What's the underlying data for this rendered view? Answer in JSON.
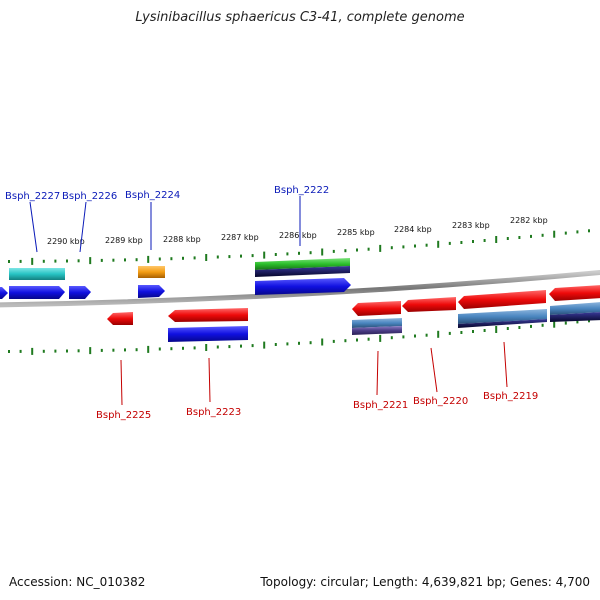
{
  "title": "Lysinibacillus sphaericus C3-41, complete genome",
  "footer": {
    "accession": "Accession: NC_010382",
    "topology": "Topology: circular; Length: 4,639,821 bp; Genes: 4,700"
  },
  "scale_labels": [
    "2290 kbp",
    "2289 kbp",
    "2288 kbp",
    "2287 kbp",
    "2286 kbp",
    "2285 kbp",
    "2284 kbp",
    "2283 kbp",
    "2282 kbp"
  ],
  "gene_labels_top": [
    "Bsph_2227",
    "Bsph_2226",
    "Bsph_2224",
    "Bsph_2222"
  ],
  "gene_labels_bottom": [
    "Bsph_2225",
    "Bsph_2223",
    "Bsph_2221",
    "Bsph_2220",
    "Bsph_2219"
  ],
  "colors": {
    "forward_gene": "#1010e0",
    "reverse_gene": "#ee0a0a",
    "cyan_track": "#27c4c4",
    "orange_track": "#f39c12",
    "green_track": "#2bbf2b",
    "navy_track": "#0d0d55",
    "steel_track": "#4a86c0",
    "purple_track": "#4b3d86",
    "backbone": "#888888",
    "tick": "#1f7a1f",
    "label_top": "#0a1ab8",
    "label_bottom": "#c40000"
  }
}
